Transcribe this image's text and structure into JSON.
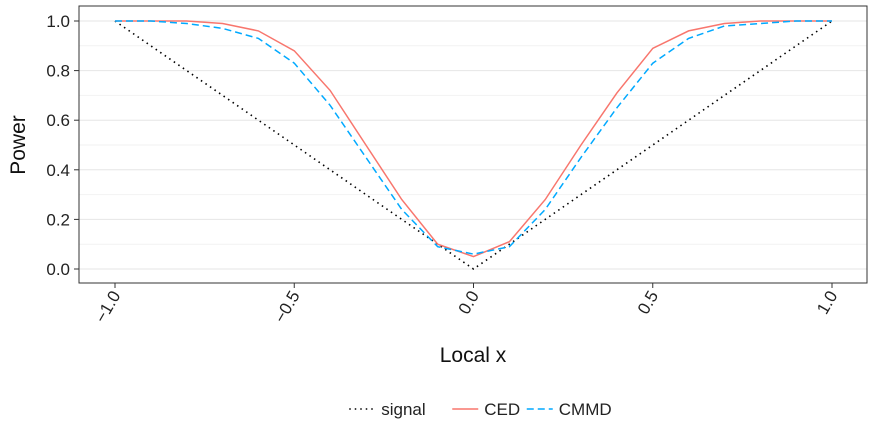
{
  "chart_data": {
    "type": "line",
    "xlabel": "Local x",
    "ylabel": "Power",
    "xlim": [
      -1.0,
      1.0
    ],
    "ylim": [
      0.0,
      1.0
    ],
    "x_ticks": [
      "-1.0",
      "-0.5",
      "0.0",
      "0.5",
      "1.0"
    ],
    "y_ticks": [
      "0.0",
      "0.2",
      "0.4",
      "0.6",
      "0.8",
      "1.0"
    ],
    "grid": true,
    "legend_position": "bottom",
    "x": [
      -1.0,
      -0.9,
      -0.8,
      -0.7,
      -0.6,
      -0.5,
      -0.4,
      -0.3,
      -0.2,
      -0.1,
      0.0,
      0.1,
      0.2,
      0.3,
      0.4,
      0.5,
      0.6,
      0.7,
      0.8,
      0.9,
      1.0
    ],
    "series": [
      {
        "name": "signal",
        "color": "#000000",
        "dash": "dotted",
        "values": [
          1.0,
          0.9,
          0.8,
          0.7,
          0.6,
          0.5,
          0.4,
          0.3,
          0.2,
          0.1,
          0.0,
          0.1,
          0.2,
          0.3,
          0.4,
          0.5,
          0.6,
          0.7,
          0.8,
          0.9,
          1.0
        ]
      },
      {
        "name": "CED",
        "color": "#F8766D",
        "dash": "solid",
        "values": [
          1.0,
          1.0,
          1.0,
          0.99,
          0.96,
          0.88,
          0.72,
          0.5,
          0.28,
          0.1,
          0.05,
          0.11,
          0.28,
          0.5,
          0.71,
          0.89,
          0.96,
          0.99,
          1.0,
          1.0,
          1.0
        ]
      },
      {
        "name": "CMMD",
        "color": "#00A9FF",
        "dash": "dashed",
        "values": [
          1.0,
          1.0,
          0.99,
          0.97,
          0.93,
          0.83,
          0.66,
          0.45,
          0.24,
          0.09,
          0.06,
          0.09,
          0.24,
          0.45,
          0.65,
          0.83,
          0.93,
          0.98,
          0.99,
          1.0,
          1.0
        ]
      }
    ]
  }
}
